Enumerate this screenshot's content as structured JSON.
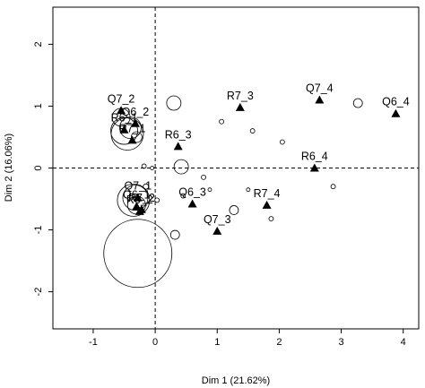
{
  "chart_data": {
    "type": "scatter",
    "xlabel": "Dim 1 (21.62%)",
    "ylabel": "Dim 2 (16.06%)",
    "xlim": [
      -1.65,
      4.25
    ],
    "ylim": [
      -2.6,
      2.6
    ],
    "xticks": [
      -1,
      0,
      1,
      2,
      3,
      4
    ],
    "yticks": [
      -2,
      -1,
      0,
      1,
      2
    ],
    "reference_lines": {
      "x": 0,
      "y": 0,
      "style": "dashed"
    },
    "grid": false,
    "legend": "none",
    "marker_color": "#000000",
    "categories": [
      {
        "label": "Q7_2",
        "x": -0.55,
        "y": 0.93
      },
      {
        "label": "Q6_2",
        "x": -0.32,
        "y": 0.72
      },
      {
        "label": "R6_1",
        "x": -0.5,
        "y": 0.62
      },
      {
        "label": "R7_1",
        "x": -0.37,
        "y": 0.45
      },
      {
        "label": "R7_3",
        "x": 1.37,
        "y": 0.98
      },
      {
        "label": "Q7_4",
        "x": 2.65,
        "y": 1.1
      },
      {
        "label": "Q6_4",
        "x": 3.88,
        "y": 0.88
      },
      {
        "label": "R6_3",
        "x": 0.37,
        "y": 0.35
      },
      {
        "label": "R6_4",
        "x": 2.57,
        "y": 0.0
      },
      {
        "label": "Q7_1",
        "x": -0.28,
        "y": -0.48
      },
      {
        "label": "Q6_1",
        "x": -0.3,
        "y": -0.62
      },
      {
        "label": "R7_2",
        "x": -0.22,
        "y": -0.67
      },
      {
        "label": "R6_2",
        "x": -0.25,
        "y": -0.7
      },
      {
        "label": "Q6_3",
        "x": 0.6,
        "y": -0.58
      },
      {
        "label": "R7_4",
        "x": 1.8,
        "y": -0.6
      },
      {
        "label": "Q7_3",
        "x": 1.0,
        "y": -1.02
      }
    ],
    "individuals": [
      {
        "x": -0.55,
        "y": 0.82,
        "size": 10
      },
      {
        "x": -0.5,
        "y": 0.6,
        "size": 15
      },
      {
        "x": -0.45,
        "y": 0.55,
        "size": 18
      },
      {
        "x": -0.4,
        "y": 0.65,
        "size": 12
      },
      {
        "x": -0.3,
        "y": 0.5,
        "size": 6
      },
      {
        "x": 0.3,
        "y": 1.05,
        "size": 8
      },
      {
        "x": 1.07,
        "y": 0.75,
        "size": 2.5
      },
      {
        "x": 1.57,
        "y": 0.6,
        "size": 2.5
      },
      {
        "x": 2.05,
        "y": 0.42,
        "size": 2.5
      },
      {
        "x": 3.27,
        "y": 1.05,
        "size": 5
      },
      {
        "x": -0.18,
        "y": 0.03,
        "size": 2.5
      },
      {
        "x": -0.05,
        "y": 0.0,
        "size": 2
      },
      {
        "x": 0.42,
        "y": 0.02,
        "size": 8
      },
      {
        "x": 0.78,
        "y": -0.15,
        "size": 2.5
      },
      {
        "x": 0.88,
        "y": -0.35,
        "size": 2
      },
      {
        "x": 1.5,
        "y": -0.35,
        "size": 2
      },
      {
        "x": 2.87,
        "y": -0.3,
        "size": 2.5
      },
      {
        "x": -0.32,
        "y": -0.48,
        "size": 14
      },
      {
        "x": -0.35,
        "y": -0.52,
        "size": 18
      },
      {
        "x": -0.3,
        "y": -0.6,
        "size": 10
      },
      {
        "x": -0.15,
        "y": -0.3,
        "size": 3
      },
      {
        "x": 0.03,
        "y": -0.52,
        "size": 2.5
      },
      {
        "x": 0.45,
        "y": -0.45,
        "size": 2.5
      },
      {
        "x": -0.28,
        "y": -1.38,
        "size": 38
      },
      {
        "x": 0.32,
        "y": -1.08,
        "size": 5
      },
      {
        "x": 1.27,
        "y": -0.68,
        "size": 5
      },
      {
        "x": 1.87,
        "y": -0.82,
        "size": 2.5
      }
    ]
  }
}
